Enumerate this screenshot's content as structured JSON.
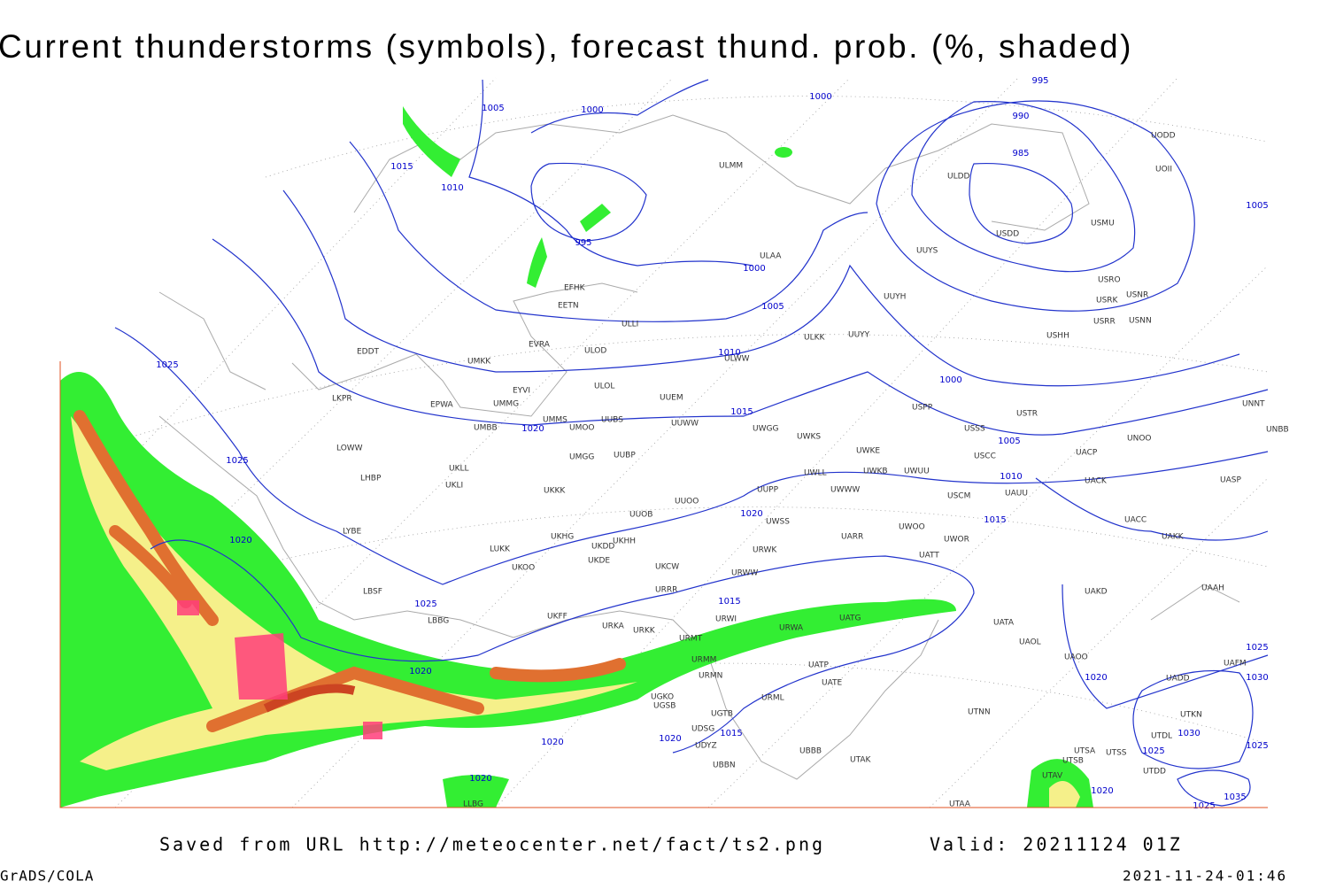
{
  "header": {
    "title": "Current thunderstorms (symbols), forecast thund. prob. (%, shaded)"
  },
  "footer": {
    "source": "Saved from URL http://meteocenter.net/fact/ts2.png",
    "valid": "Valid: 20211124 01Z",
    "software": "GrADS/COLA",
    "timestamp": "2021-11-24-01:46"
  },
  "map": {
    "stations": [
      "ULMM",
      "ULDD",
      "UODD",
      "UOII",
      "ULAA",
      "UUYS",
      "USDD",
      "USMU",
      "EFHK",
      "EETN",
      "ULLI",
      "UUYH",
      "USRO",
      "USRK",
      "USNR",
      "USRR",
      "USNN",
      "USHH",
      "ULKK",
      "UUYY",
      "EVRA",
      "ULOD",
      "EDDT",
      "UMKK",
      "ULWW",
      "EYVI",
      "ULOL",
      "UUEM",
      "LKPR",
      "EPWA",
      "UMMG",
      "USPP",
      "USTR",
      "UMMS",
      "UUBS",
      "UUWW",
      "UMBB",
      "UMOO",
      "UWGG",
      "UWKS",
      "USSS",
      "UNOO",
      "UNNT",
      "UNBB",
      "LOWW",
      "UWKE",
      "UUBP",
      "UMGG",
      "USCC",
      "UACP",
      "UWLL",
      "UWKB",
      "UWUU",
      "UKLL",
      "LHBP",
      "UKLI",
      "USCM",
      "UAUU",
      "UACK",
      "UASP",
      "UKKK",
      "UUPP",
      "UWWW",
      "UUOO",
      "LYBE",
      "UUOB",
      "UWSS",
      "UACC",
      "UAKK",
      "UKHG",
      "UKHH",
      "UWOO",
      "UARR",
      "UWOR",
      "LUKK",
      "UKDD",
      "URWK",
      "UATT",
      "UKOO",
      "UKDE",
      "UKCW",
      "URWW",
      "LBSF",
      "URRR",
      "UAKD",
      "UAAH",
      "UKFF",
      "LBBG",
      "URKA",
      "URKK",
      "URWI",
      "URWA",
      "UATG",
      "UATA",
      "UAOL",
      "URMT",
      "UAOO",
      "UAFM",
      "URMM",
      "UATP",
      "UATE",
      "URMN",
      "UADD",
      "UGKO",
      "UGSB",
      "URML",
      "UGTB",
      "UTKN",
      "UTNN",
      "UDSG",
      "UTDL",
      "UDYZ",
      "UBBB",
      "UTSA",
      "UTSS",
      "UTSB",
      "UTAK",
      "UBBN",
      "UTAV",
      "UTDD",
      "UTAA",
      "LLBG"
    ],
    "isobar_labels": [
      1005,
      1000,
      995,
      1000,
      990,
      985,
      1015,
      1010,
      995,
      1000,
      1005,
      1005,
      1025,
      1010,
      1000,
      1015,
      1020,
      1005,
      1025,
      1010,
      1015,
      1020,
      1020,
      1025,
      1015,
      1020,
      1020,
      1025,
      1030,
      1030,
      1025,
      1025,
      1020,
      1020,
      1015,
      1020,
      1020,
      1035,
      1025
    ]
  }
}
